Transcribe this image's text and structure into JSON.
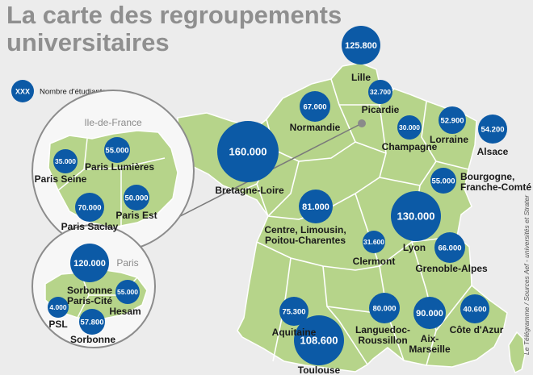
{
  "title_line1": "La carte des regroupements",
  "title_line2": "universitaires",
  "legend": {
    "symbol": "XXX",
    "label": "Nombre d'étudiants"
  },
  "insets": {
    "idf_title": "Ile-de-France",
    "paris_title": "Paris"
  },
  "credit": "Le Télégramme / Sources Aef - universités et Strater",
  "colors": {
    "bubble": "#0c5aa6",
    "land": "#b6d48a",
    "land_border": "#ffffff",
    "background": "#ececec",
    "inset_stroke": "#8c8c8c"
  },
  "regions": [
    {
      "id": "lille",
      "name": "Lille",
      "value": "125.800"
    },
    {
      "id": "picardie",
      "name": "Picardie",
      "value": "32.700"
    },
    {
      "id": "normandie",
      "name": "Normandie",
      "value": "67.000"
    },
    {
      "id": "champagne",
      "name": "Champagne",
      "value": "30.000"
    },
    {
      "id": "lorraine",
      "name": "Lorraine",
      "value": "52.900"
    },
    {
      "id": "alsace",
      "name": "Alsace",
      "value": "54.200"
    },
    {
      "id": "bretagne-loire",
      "name": "Bretagne-Loire",
      "value": "160.000"
    },
    {
      "id": "bourgogne",
      "name": "Bourgogne,\nFranche-Comté",
      "value": "55.000"
    },
    {
      "id": "centre",
      "name": "Centre, Limousin,\nPoitou-Charentes",
      "value": "81.000"
    },
    {
      "id": "lyon",
      "name": "Lyon",
      "value": "130.000"
    },
    {
      "id": "clermont",
      "name": "Clermont",
      "value": "31.600"
    },
    {
      "id": "grenoble",
      "name": "Grenoble-Alpes",
      "value": "66.000"
    },
    {
      "id": "aquitaine",
      "name": "Aquitaine",
      "value": "75.300"
    },
    {
      "id": "toulouse",
      "name": "Toulouse",
      "value": "108.600"
    },
    {
      "id": "languedoc",
      "name": "Languedoc-\nRoussillon",
      "value": "80.000"
    },
    {
      "id": "aix-marseille",
      "name": "Aix-\nMarseille",
      "value": "90.000"
    },
    {
      "id": "cote-azur",
      "name": "Côte d'Azur",
      "value": "40.600"
    },
    {
      "id": "paris-seine",
      "name": "Paris Seine",
      "value": "35.000"
    },
    {
      "id": "paris-lumieres",
      "name": "Paris Lumières",
      "value": "55.000"
    },
    {
      "id": "paris-saclay",
      "name": "Paris Saclay",
      "value": "70.000"
    },
    {
      "id": "paris-est",
      "name": "Paris Est",
      "value": "50.000"
    },
    {
      "id": "sorbonne-paris-cite",
      "name": "Sorbonne\nParis-Cité",
      "value": "120.000"
    },
    {
      "id": "hesam",
      "name": "Hesam",
      "value": "55.000"
    },
    {
      "id": "psl",
      "name": "PSL",
      "value": "4.000"
    },
    {
      "id": "sorbonne",
      "name": "Sorbonne",
      "value": "57.800"
    }
  ]
}
